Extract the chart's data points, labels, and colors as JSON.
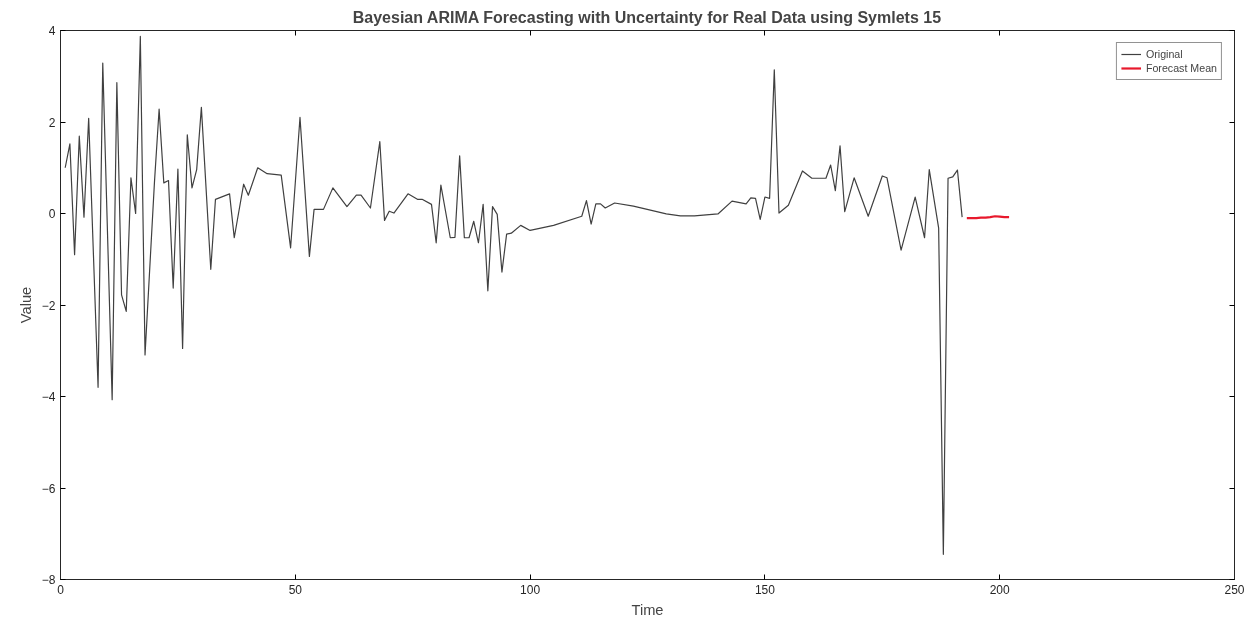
{
  "chart_data": {
    "type": "line",
    "title": "Bayesian ARIMA Forecasting with Uncertainty for Real Data using Symlets 15",
    "xlabel": "Time",
    "ylabel": "Value",
    "xlim": [
      0,
      250
    ],
    "ylim": [
      -8,
      4
    ],
    "xticks": [
      0,
      50,
      100,
      150,
      200,
      250
    ],
    "yticks": [
      -8,
      -6,
      -4,
      -2,
      0,
      2,
      4
    ],
    "grid": false,
    "legend": "top right",
    "marker": "none",
    "line_style": "solid",
    "series": [
      {
        "name": "Original",
        "color": "#404040",
        "x": [
          1,
          2,
          3,
          4,
          5,
          6,
          8,
          9,
          11,
          12,
          13,
          14,
          15,
          16,
          17,
          18,
          20,
          21,
          22,
          23,
          24,
          25,
          26,
          27,
          28,
          29,
          30,
          32,
          33,
          36,
          37,
          39,
          40,
          42,
          44,
          47,
          49,
          51,
          53,
          54,
          56,
          58,
          61,
          63,
          64,
          66,
          68,
          69,
          70,
          71,
          74,
          76,
          77,
          79,
          80,
          81,
          83,
          84,
          85,
          86,
          87,
          88,
          89,
          90,
          91,
          92,
          93,
          94,
          95,
          96,
          98,
          100,
          105,
          111,
          112,
          113,
          114,
          115,
          116,
          118,
          122,
          129,
          132,
          135,
          140,
          143,
          146,
          147,
          148,
          149,
          150,
          151,
          152,
          153,
          155,
          158,
          160,
          163,
          164,
          165,
          166,
          167,
          169,
          172,
          175,
          176,
          179,
          182,
          184,
          185,
          187,
          188,
          189,
          190,
          191,
          192
        ],
        "values": [
          1.0,
          1.52,
          -0.9,
          1.69,
          -0.08,
          2.08,
          -3.8,
          3.29,
          -4.07,
          2.86,
          -1.78,
          -2.14,
          0.78,
          0.0,
          3.87,
          -3.09,
          0.67,
          2.28,
          0.67,
          0.72,
          -1.63,
          0.97,
          -2.95,
          1.72,
          0.56,
          0.96,
          2.32,
          -1.22,
          0.31,
          0.43,
          -0.53,
          0.64,
          0.4,
          1.0,
          0.87,
          0.84,
          -0.75,
          2.1,
          -0.94,
          0.09,
          0.09,
          0.56,
          0.15,
          0.4,
          0.4,
          0.12,
          1.57,
          -0.15,
          0.05,
          0.01,
          0.43,
          0.31,
          0.31,
          0.2,
          -0.64,
          0.62,
          -0.53,
          -0.52,
          1.26,
          -0.53,
          -0.53,
          -0.17,
          -0.64,
          0.2,
          -1.69,
          0.15,
          -0.02,
          -1.28,
          -0.45,
          -0.43,
          -0.26,
          -0.37,
          -0.26,
          -0.06,
          0.28,
          -0.23,
          0.21,
          0.21,
          0.12,
          0.23,
          0.16,
          -0.01,
          -0.05,
          -0.05,
          -0.01,
          0.27,
          0.21,
          0.34,
          0.33,
          -0.13,
          0.36,
          0.33,
          3.14,
          0.01,
          0.18,
          0.93,
          0.77,
          0.77,
          1.06,
          0.5,
          1.48,
          0.04,
          0.78,
          -0.06,
          0.82,
          0.78,
          -0.8,
          0.36,
          -0.53,
          0.96,
          -0.32,
          -7.45,
          0.77,
          0.8,
          0.95,
          -0.08
        ]
      },
      {
        "name": "Forecast Mean",
        "color": "#e8192c",
        "x": [
          193,
          194,
          195,
          196,
          197,
          198,
          199,
          200,
          201,
          202
        ],
        "values": [
          -0.1,
          -0.1,
          -0.1,
          -0.09,
          -0.09,
          -0.08,
          -0.06,
          -0.07,
          -0.08,
          -0.08
        ]
      }
    ]
  }
}
